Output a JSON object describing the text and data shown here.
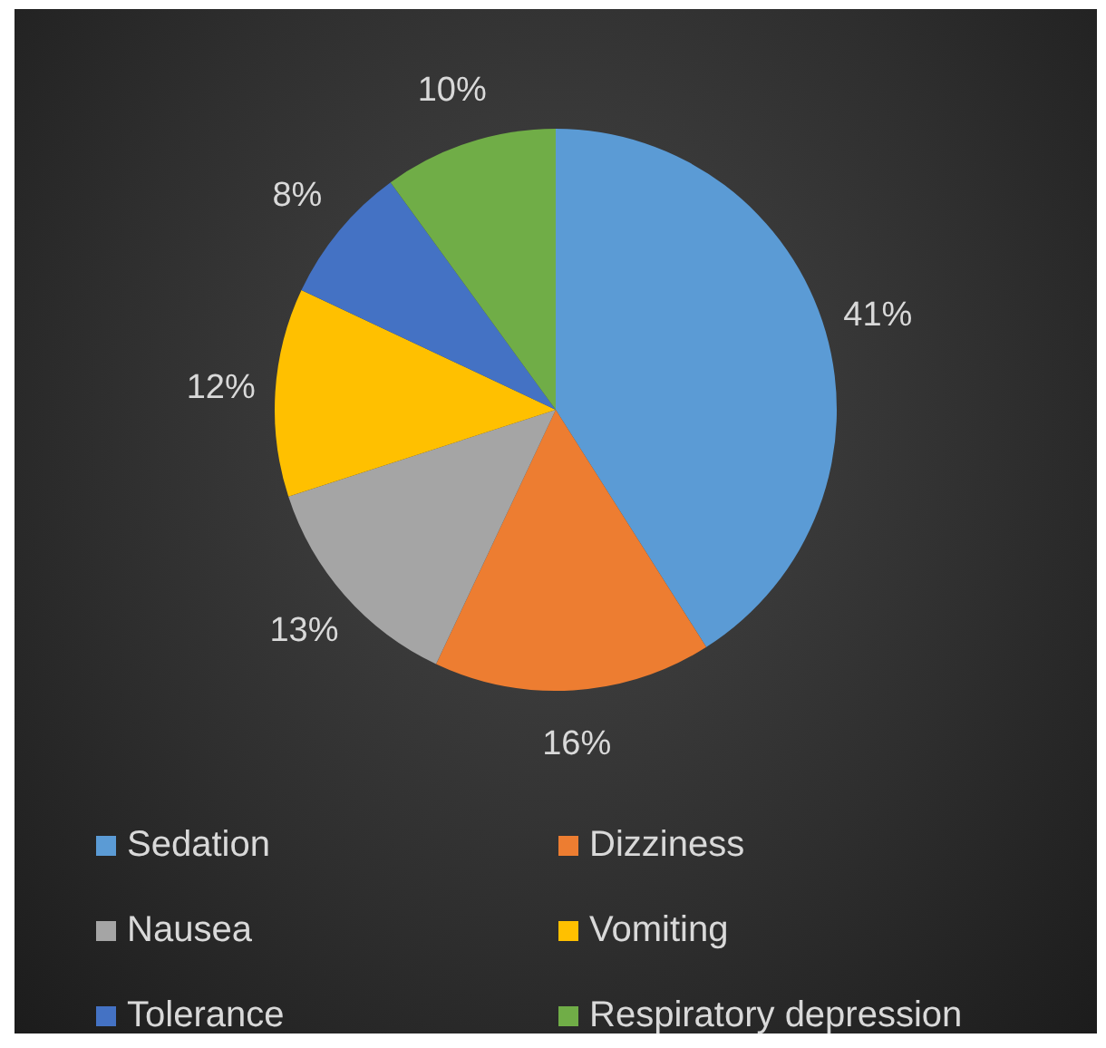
{
  "chart_data": {
    "type": "pie",
    "categories": [
      "Sedation",
      "Dizziness",
      "Nausea",
      "Vomiting",
      "Tolerance",
      "Respiratory depression"
    ],
    "values": [
      41,
      16,
      13,
      12,
      8,
      10
    ],
    "colors": [
      "#5b9bd5",
      "#ed7d31",
      "#a5a5a5",
      "#ffc000",
      "#4472c4",
      "#70ad47"
    ],
    "value_labels": [
      "41%",
      "16%",
      "13%",
      "12%",
      "8%",
      "10%"
    ],
    "legend": "bottom"
  }
}
